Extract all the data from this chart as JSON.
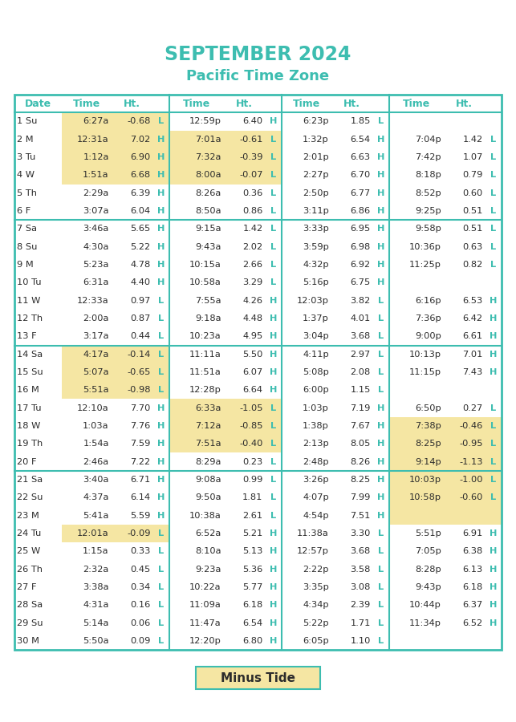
{
  "title": "SEPTEMBER 2024",
  "subtitle": "Pacific Time Zone",
  "title_color": "#3dbdb0",
  "header_color": "#3dbdb0",
  "border_color": "#3dbdb0",
  "highlight_yellow": "#f5e6a3",
  "bg_color": "#ffffff",
  "text_color": "#2c2c2c",
  "rows": [
    [
      "1 Su",
      "6:27a",
      "-0.68",
      "L",
      "12:59p",
      "6.40",
      "H",
      "6:23p",
      "1.85",
      "L",
      "",
      "",
      ""
    ],
    [
      "2 M",
      "12:31a",
      "7.02",
      "H",
      "7:01a",
      "-0.61",
      "L",
      "1:32p",
      "6.54",
      "H",
      "7:04p",
      "1.42",
      "L"
    ],
    [
      "3 Tu",
      "1:12a",
      "6.90",
      "H",
      "7:32a",
      "-0.39",
      "L",
      "2:01p",
      "6.63",
      "H",
      "7:42p",
      "1.07",
      "L"
    ],
    [
      "4 W",
      "1:51a",
      "6.68",
      "H",
      "8:00a",
      "-0.07",
      "L",
      "2:27p",
      "6.70",
      "H",
      "8:18p",
      "0.79",
      "L"
    ],
    [
      "5 Th",
      "2:29a",
      "6.39",
      "H",
      "8:26a",
      "0.36",
      "L",
      "2:50p",
      "6.77",
      "H",
      "8:52p",
      "0.60",
      "L"
    ],
    [
      "6 F",
      "3:07a",
      "6.04",
      "H",
      "8:50a",
      "0.86",
      "L",
      "3:11p",
      "6.86",
      "H",
      "9:25p",
      "0.51",
      "L"
    ],
    [
      "7 Sa",
      "3:46a",
      "5.65",
      "H",
      "9:15a",
      "1.42",
      "L",
      "3:33p",
      "6.95",
      "H",
      "9:58p",
      "0.51",
      "L"
    ],
    [
      "8 Su",
      "4:30a",
      "5.22",
      "H",
      "9:43a",
      "2.02",
      "L",
      "3:59p",
      "6.98",
      "H",
      "10:36p",
      "0.63",
      "L"
    ],
    [
      "9 M",
      "5:23a",
      "4.78",
      "H",
      "10:15a",
      "2.66",
      "L",
      "4:32p",
      "6.92",
      "H",
      "11:25p",
      "0.82",
      "L"
    ],
    [
      "10 Tu",
      "6:31a",
      "4.40",
      "H",
      "10:58a",
      "3.29",
      "L",
      "5:16p",
      "6.75",
      "H",
      "",
      "",
      ""
    ],
    [
      "11 W",
      "12:33a",
      "0.97",
      "L",
      "7:55a",
      "4.26",
      "H",
      "12:03p",
      "3.82",
      "L",
      "6:16p",
      "6.53",
      "H"
    ],
    [
      "12 Th",
      "2:00a",
      "0.87",
      "L",
      "9:18a",
      "4.48",
      "H",
      "1:37p",
      "4.01",
      "L",
      "7:36p",
      "6.42",
      "H"
    ],
    [
      "13 F",
      "3:17a",
      "0.44",
      "L",
      "10:23a",
      "4.95",
      "H",
      "3:04p",
      "3.68",
      "L",
      "9:00p",
      "6.61",
      "H"
    ],
    [
      "14 Sa",
      "4:17a",
      "-0.14",
      "L",
      "11:11a",
      "5.50",
      "H",
      "4:11p",
      "2.97",
      "L",
      "10:13p",
      "7.01",
      "H"
    ],
    [
      "15 Su",
      "5:07a",
      "-0.65",
      "L",
      "11:51a",
      "6.07",
      "H",
      "5:08p",
      "2.08",
      "L",
      "11:15p",
      "7.43",
      "H"
    ],
    [
      "16 M",
      "5:51a",
      "-0.98",
      "L",
      "12:28p",
      "6.64",
      "H",
      "6:00p",
      "1.15",
      "L",
      "",
      "",
      ""
    ],
    [
      "17 Tu",
      "12:10a",
      "7.70",
      "H",
      "6:33a",
      "-1.05",
      "L",
      "1:03p",
      "7.19",
      "H",
      "6:50p",
      "0.27",
      "L"
    ],
    [
      "18 W",
      "1:03a",
      "7.76",
      "H",
      "7:12a",
      "-0.85",
      "L",
      "1:38p",
      "7.67",
      "H",
      "7:38p",
      "-0.46",
      "L"
    ],
    [
      "19 Th",
      "1:54a",
      "7.59",
      "H",
      "7:51a",
      "-0.40",
      "L",
      "2:13p",
      "8.05",
      "H",
      "8:25p",
      "-0.95",
      "L"
    ],
    [
      "20 F",
      "2:46a",
      "7.22",
      "H",
      "8:29a",
      "0.23",
      "L",
      "2:48p",
      "8.26",
      "H",
      "9:14p",
      "-1.13",
      "L"
    ],
    [
      "21 Sa",
      "3:40a",
      "6.71",
      "H",
      "9:08a",
      "0.99",
      "L",
      "3:26p",
      "8.25",
      "H",
      "10:03p",
      "-1.00",
      "L"
    ],
    [
      "22 Su",
      "4:37a",
      "6.14",
      "H",
      "9:50a",
      "1.81",
      "L",
      "4:07p",
      "7.99",
      "H",
      "10:58p",
      "-0.60",
      "L"
    ],
    [
      "23 M",
      "5:41a",
      "5.59",
      "H",
      "10:38a",
      "2.61",
      "L",
      "4:54p",
      "7.51",
      "H",
      "",
      "",
      ""
    ],
    [
      "24 Tu",
      "12:01a",
      "-0.09",
      "L",
      "6:52a",
      "5.21",
      "H",
      "11:38a",
      "3.30",
      "L",
      "5:51p",
      "6.91",
      "H"
    ],
    [
      "25 W",
      "1:15a",
      "0.33",
      "L",
      "8:10a",
      "5.13",
      "H",
      "12:57p",
      "3.68",
      "L",
      "7:05p",
      "6.38",
      "H"
    ],
    [
      "26 Th",
      "2:32a",
      "0.45",
      "L",
      "9:23a",
      "5.36",
      "H",
      "2:22p",
      "3.58",
      "L",
      "8:28p",
      "6.13",
      "H"
    ],
    [
      "27 F",
      "3:38a",
      "0.34",
      "L",
      "10:22a",
      "5.77",
      "H",
      "3:35p",
      "3.08",
      "L",
      "9:43p",
      "6.18",
      "H"
    ],
    [
      "28 Sa",
      "4:31a",
      "0.16",
      "L",
      "11:09a",
      "6.18",
      "H",
      "4:34p",
      "2.39",
      "L",
      "10:44p",
      "6.37",
      "H"
    ],
    [
      "29 Su",
      "5:14a",
      "0.06",
      "L",
      "11:47a",
      "6.54",
      "H",
      "5:22p",
      "1.71",
      "L",
      "11:34p",
      "6.52",
      "H"
    ],
    [
      "30 M",
      "5:50a",
      "0.09",
      "L",
      "12:20p",
      "6.80",
      "H",
      "6:05p",
      "1.10",
      "L",
      "",
      "",
      ""
    ]
  ],
  "highlight_cells": {
    "col1": [
      0,
      1,
      2,
      3,
      13,
      14,
      15,
      23
    ],
    "col2": [
      1,
      2,
      3,
      16,
      17,
      18
    ],
    "col4": [
      17,
      18,
      19,
      20,
      21,
      22
    ]
  },
  "week_dividers": [
    7,
    14,
    21
  ],
  "legend_text": "Minus Tide",
  "legend_bg": "#f5e6a3"
}
